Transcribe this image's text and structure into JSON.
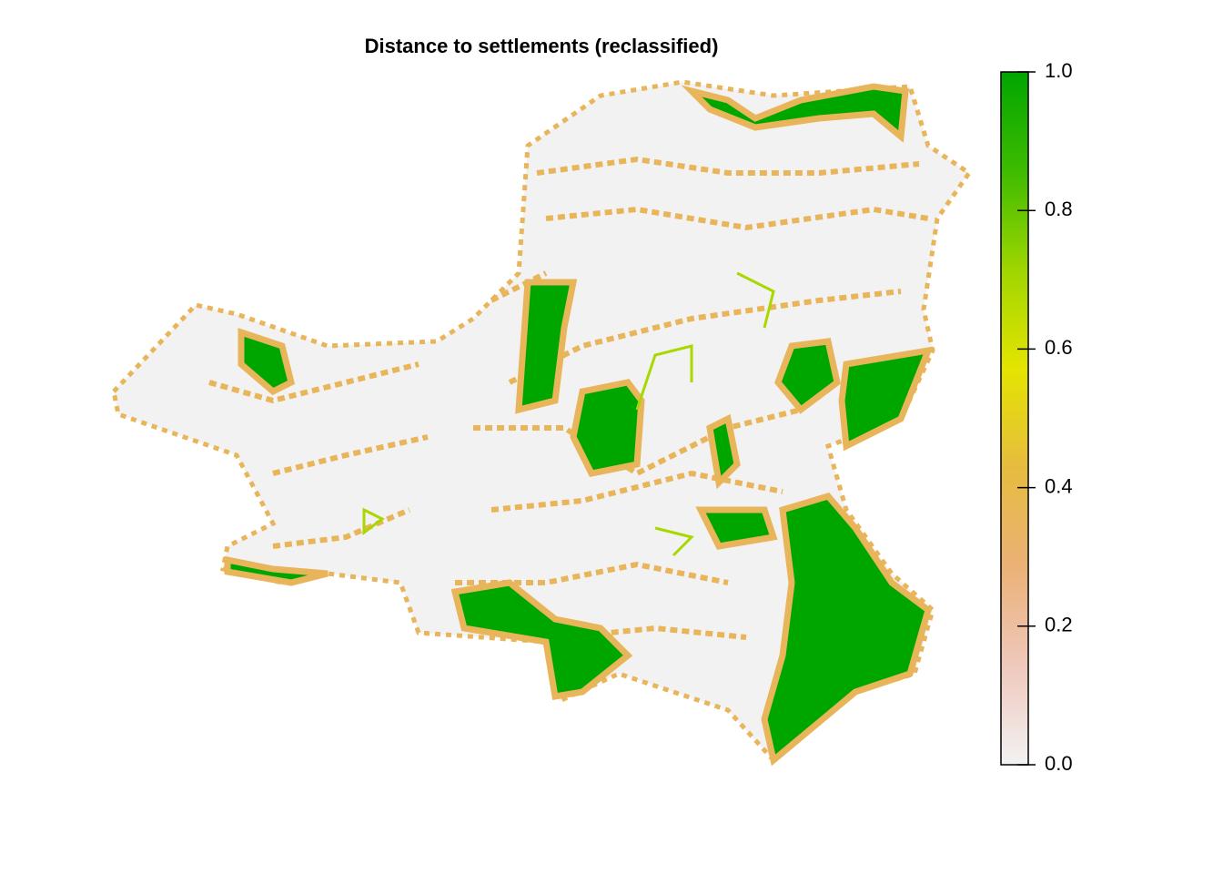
{
  "title": "Distance to settlements (reclassified)",
  "legend": {
    "range": [
      0,
      1
    ],
    "ticks": [
      {
        "value": 0,
        "label": "0.0"
      },
      0.2,
      0.4,
      0.6,
      0.8,
      {
        "value": 1,
        "label": "1.0"
      }
    ],
    "colors": [
      "#F2F2F2",
      "#EFC8BC",
      "#EBB176",
      "#E6BC3F",
      "#E4E400",
      "#9FD600",
      "#3EBB00",
      "#00A600"
    ]
  }
}
